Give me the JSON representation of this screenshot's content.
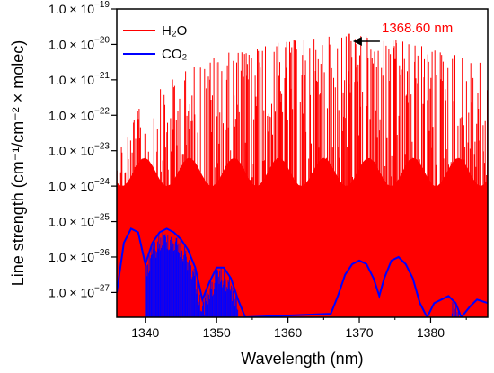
{
  "chart_data": {
    "type": "line",
    "xlabel": "Wavelength (nm)",
    "ylabel": "Line strength (cm⁻¹/cm⁻² × molec)",
    "xlim": [
      1336,
      1388
    ],
    "ylim_log10": [
      -27.7,
      -19
    ],
    "yscale": "log",
    "x_ticks": [
      1340,
      1350,
      1360,
      1370,
      1380
    ],
    "y_ticks": [
      {
        "exp": -19,
        "label": "1.0 × 10",
        "sup": "−19"
      },
      {
        "exp": -20,
        "label": "1.0 × 10",
        "sup": "−20"
      },
      {
        "exp": -21,
        "label": "1.0 × 10",
        "sup": "−21"
      },
      {
        "exp": -22,
        "label": "1.0 × 10",
        "sup": "−22"
      },
      {
        "exp": -23,
        "label": "1.0 × 10",
        "sup": "−23"
      },
      {
        "exp": -24,
        "label": "1.0 × 10",
        "sup": "−24"
      },
      {
        "exp": -25,
        "label": "1.0 × 10",
        "sup": "−25"
      },
      {
        "exp": -26,
        "label": "1.0 × 10",
        "sup": "−26"
      },
      {
        "exp": -27,
        "label": "1.0 × 10",
        "sup": "−27"
      }
    ],
    "grid": false,
    "legend_position": "top-left",
    "series": [
      {
        "name": "H₂O",
        "color": "#ff0000",
        "style": "stick-lines",
        "envelope_log10_peak": [
          [
            1336,
            -22.6
          ],
          [
            1340,
            -21.6
          ],
          [
            1345,
            -20.8
          ],
          [
            1350,
            -20.3
          ],
          [
            1355,
            -20.1
          ],
          [
            1360,
            -19.9
          ],
          [
            1365,
            -19.8
          ],
          [
            1368.6,
            -19.7
          ],
          [
            1372,
            -19.8
          ],
          [
            1376,
            -19.9
          ],
          [
            1380,
            -20.1
          ],
          [
            1384,
            -20.3
          ],
          [
            1388,
            -20.6
          ]
        ],
        "highlighted_line": {
          "x": 1368.6,
          "log10_y": -19.7
        }
      },
      {
        "name": "CO₂",
        "color": "#0000ff",
        "style": "envelope-line",
        "envelope_log10": [
          [
            1336,
            -27.0
          ],
          [
            1337,
            -25.6
          ],
          [
            1338,
            -25.2
          ],
          [
            1339,
            -25.3
          ],
          [
            1340,
            -26.2
          ],
          [
            1341,
            -25.6
          ],
          [
            1342,
            -25.3
          ],
          [
            1343,
            -25.2
          ],
          [
            1344,
            -25.3
          ],
          [
            1345,
            -25.5
          ],
          [
            1346,
            -25.8
          ],
          [
            1347,
            -26.3
          ],
          [
            1348,
            -27.2
          ],
          [
            1349,
            -26.7
          ],
          [
            1350,
            -26.3
          ],
          [
            1351,
            -26.3
          ],
          [
            1352,
            -26.6
          ],
          [
            1353,
            -27.2
          ],
          [
            1354,
            -27.7
          ],
          [
            1366,
            -27.6
          ],
          [
            1367,
            -27.1
          ],
          [
            1368,
            -26.5
          ],
          [
            1369,
            -26.2
          ],
          [
            1370,
            -26.1
          ],
          [
            1371,
            -26.2
          ],
          [
            1372,
            -26.6
          ],
          [
            1372.8,
            -27.1
          ],
          [
            1373.5,
            -26.6
          ],
          [
            1374.5,
            -26.1
          ],
          [
            1375.5,
            -26.0
          ],
          [
            1376.5,
            -26.2
          ],
          [
            1377.5,
            -26.6
          ],
          [
            1378.5,
            -27.3
          ],
          [
            1379.5,
            -27.7
          ],
          [
            1380.5,
            -27.3
          ],
          [
            1381.5,
            -27.2
          ],
          [
            1382.5,
            -27.1
          ],
          [
            1383.5,
            -27.3
          ],
          [
            1384.3,
            -27.7
          ],
          [
            1385.5,
            -27.4
          ],
          [
            1386.5,
            -27.2
          ],
          [
            1388,
            -27.3
          ]
        ],
        "dense_line_regions": [
          [
            1340,
            1353
          ],
          [
            1383,
            1385
          ]
        ]
      }
    ],
    "annotations": [
      {
        "text": "1368.60 nm",
        "color": "#ff0000",
        "points_to": {
          "x": 1368.6,
          "log10_y": -19.7
        }
      }
    ]
  }
}
